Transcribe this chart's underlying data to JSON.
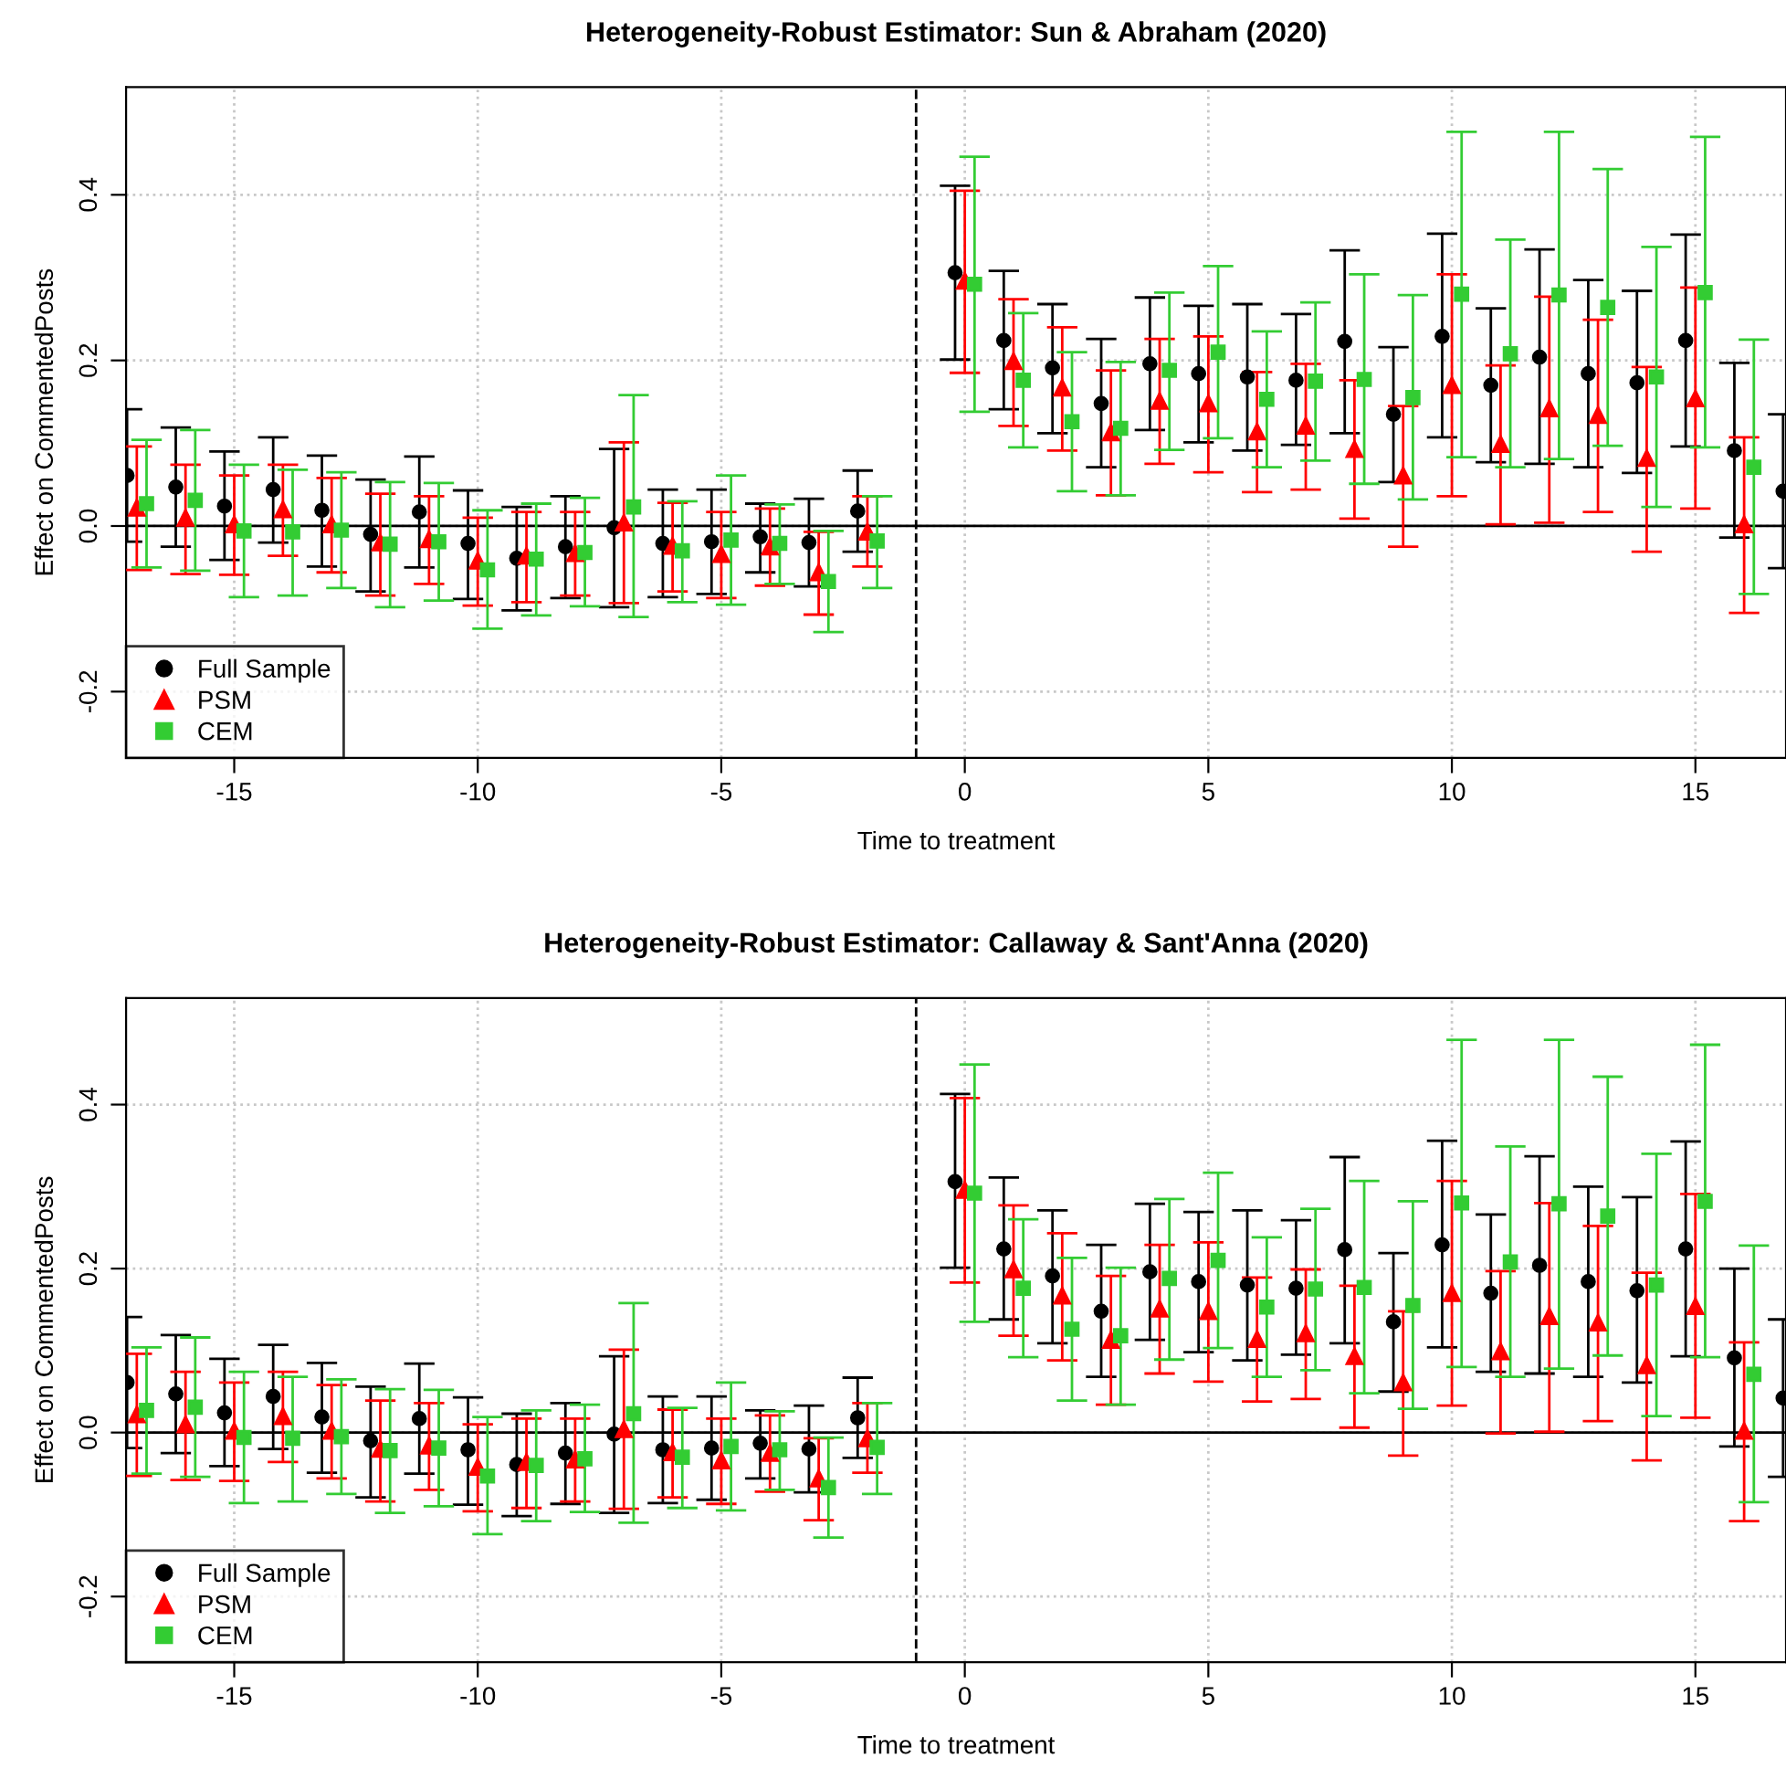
{
  "chart_data": [
    {
      "type": "scatter",
      "title": "Heterogeneity-Robust Estimator: Sun & Abraham (2020)",
      "xlabel": "Time to treatment",
      "ylabel": "Effect on CommentedPosts",
      "xlim": [
        -17.22,
        16.86
      ],
      "ylim": [
        -0.28,
        0.53
      ],
      "xticks": [
        -15,
        -10,
        -5,
        0,
        5,
        10,
        15
      ],
      "yticks": [
        -0.2,
        {
          "value": 0,
          "label": "0.0"
        },
        0.2,
        0.4
      ],
      "grid": true,
      "legend": "bottom left",
      "line_style": "none",
      "ref_lines": [
        {
          "axis": "x",
          "value": -1,
          "color": "#000000",
          "line_style": "dashed"
        },
        {
          "axis": "y",
          "value": 0,
          "color": "#000000",
          "line_style": "solid"
        }
      ],
      "series": [
        {
          "name": "Full Sample",
          "color": "#000000",
          "marker": "circle",
          "x": [
            -17.2,
            -16.2,
            -15.2,
            -14.2,
            -13.2,
            -12.2,
            -11.2,
            -10.2,
            -9.2,
            -8.2,
            -7.2,
            -6.2,
            -5.2,
            -4.2,
            -3.2,
            -2.2,
            -0.2,
            0.8,
            1.8,
            2.8,
            3.8,
            4.8,
            5.8,
            6.8,
            7.8,
            8.8,
            9.8,
            10.8,
            11.8,
            12.8,
            13.8,
            14.8,
            15.8,
            16.8
          ],
          "values": [
            0.061,
            0.047,
            0.024,
            0.044,
            0.019,
            -0.01,
            0.017,
            -0.021,
            -0.039,
            -0.025,
            -0.002,
            -0.021,
            -0.019,
            -0.013,
            -0.02,
            0.018,
            0.306,
            0.224,
            0.191,
            0.148,
            0.196,
            0.184,
            0.18,
            0.176,
            0.223,
            0.135,
            0.229,
            0.17,
            0.204,
            0.184,
            0.173,
            0.224,
            0.091,
            0.042
          ],
          "errors": [
            [
              -0.019,
              0.141
            ],
            [
              -0.025,
              0.119
            ],
            [
              -0.041,
              0.09
            ],
            [
              -0.02,
              0.107
            ],
            [
              -0.049,
              0.085
            ],
            [
              -0.079,
              0.056
            ],
            [
              -0.05,
              0.084
            ],
            [
              -0.088,
              0.043
            ],
            [
              -0.102,
              0.023
            ],
            [
              -0.087,
              0.036
            ],
            [
              -0.098,
              0.093
            ],
            [
              -0.086,
              0.044
            ],
            [
              -0.082,
              0.044
            ],
            [
              -0.056,
              0.027
            ],
            [
              -0.073,
              0.033
            ],
            [
              -0.031,
              0.067
            ],
            [
              0.201,
              0.411
            ],
            [
              0.141,
              0.308
            ],
            [
              0.112,
              0.268
            ],
            [
              0.071,
              0.226
            ],
            [
              0.116,
              0.276
            ],
            [
              0.101,
              0.266
            ],
            [
              0.091,
              0.268
            ],
            [
              0.098,
              0.256
            ],
            [
              0.112,
              0.333
            ],
            [
              0.053,
              0.216
            ],
            [
              0.107,
              0.353
            ],
            [
              0.077,
              0.263
            ],
            [
              0.075,
              0.334
            ],
            [
              0.071,
              0.297
            ],
            [
              0.064,
              0.284
            ],
            [
              0.096,
              0.352
            ],
            [
              -0.014,
              0.197
            ],
            [
              -0.051,
              0.135
            ]
          ]
        },
        {
          "name": "PSM",
          "color": "#ff0000",
          "marker": "triangle",
          "x": [
            -17,
            -16,
            -15,
            -14,
            -13,
            -12,
            -11,
            -10,
            -9,
            -8,
            -7,
            -6,
            -5,
            -4,
            -3,
            -2,
            0,
            1,
            2,
            3,
            4,
            5,
            6,
            7,
            8,
            9,
            10,
            11,
            12,
            13,
            14,
            15,
            16
          ],
          "values": [
            0.022,
            0.01,
            0.002,
            0.02,
            0.002,
            -0.02,
            -0.016,
            -0.042,
            -0.036,
            -0.033,
            0.004,
            -0.024,
            -0.034,
            -0.025,
            -0.056,
            -0.007,
            0.296,
            0.199,
            0.167,
            0.113,
            0.151,
            0.148,
            0.114,
            0.121,
            0.093,
            0.061,
            0.17,
            0.099,
            0.142,
            0.134,
            0.082,
            0.154,
            0.002
          ],
          "errors": [
            [
              -0.053,
              0.096
            ],
            [
              -0.058,
              0.074
            ],
            [
              -0.059,
              0.061
            ],
            [
              -0.036,
              0.074
            ],
            [
              -0.056,
              0.058
            ],
            [
              -0.084,
              0.039
            ],
            [
              -0.07,
              0.036
            ],
            [
              -0.096,
              0.01
            ],
            [
              -0.092,
              0.017
            ],
            [
              -0.084,
              0.017
            ],
            [
              -0.093,
              0.101
            ],
            [
              -0.079,
              0.028
            ],
            [
              -0.087,
              0.017
            ],
            [
              -0.072,
              0.021
            ],
            [
              -0.107,
              -0.007
            ],
            [
              -0.049,
              0.036
            ],
            [
              0.185,
              0.405
            ],
            [
              0.121,
              0.274
            ],
            [
              0.091,
              0.24
            ],
            [
              0.037,
              0.188
            ],
            [
              0.075,
              0.226
            ],
            [
              0.065,
              0.229
            ],
            [
              0.041,
              0.186
            ],
            [
              0.044,
              0.196
            ],
            [
              0.009,
              0.176
            ],
            [
              -0.025,
              0.145
            ],
            [
              0.036,
              0.304
            ],
            [
              0.002,
              0.194
            ],
            [
              0.004,
              0.277
            ],
            [
              0.017,
              0.249
            ],
            [
              -0.031,
              0.192
            ],
            [
              0.021,
              0.288
            ],
            [
              -0.105,
              0.107
            ]
          ]
        },
        {
          "name": "CEM",
          "color": "#33cc33",
          "marker": "square",
          "x": [
            -16.8,
            -15.8,
            -14.8,
            -13.8,
            -12.8,
            -11.8,
            -10.8,
            -9.8,
            -8.8,
            -7.8,
            -6.8,
            -5.8,
            -4.8,
            -3.8,
            -2.8,
            -1.8,
            0.2,
            1.2,
            2.2,
            3.2,
            4.2,
            5.2,
            6.2,
            7.2,
            8.2,
            9.2,
            10.2,
            11.2,
            12.2,
            13.2,
            14.2,
            15.2,
            16.2
          ],
          "values": [
            0.027,
            0.031,
            -0.006,
            -0.007,
            -0.005,
            -0.022,
            -0.019,
            -0.053,
            -0.04,
            -0.032,
            0.023,
            -0.03,
            -0.017,
            -0.021,
            -0.067,
            -0.018,
            0.292,
            0.176,
            0.126,
            0.118,
            0.188,
            0.21,
            0.153,
            0.175,
            0.177,
            0.155,
            0.28,
            0.208,
            0.279,
            0.264,
            0.18,
            0.282,
            0.071
          ],
          "errors": [
            [
              -0.05,
              0.104
            ],
            [
              -0.054,
              0.116
            ],
            [
              -0.086,
              0.074
            ],
            [
              -0.084,
              0.068
            ],
            [
              -0.075,
              0.065
            ],
            [
              -0.098,
              0.053
            ],
            [
              -0.09,
              0.052
            ],
            [
              -0.124,
              0.019
            ],
            [
              -0.108,
              0.027
            ],
            [
              -0.097,
              0.034
            ],
            [
              -0.11,
              0.158
            ],
            [
              -0.092,
              0.03
            ],
            [
              -0.095,
              0.061
            ],
            [
              -0.07,
              0.026
            ],
            [
              -0.128,
              -0.006
            ],
            [
              -0.075,
              0.036
            ],
            [
              0.138,
              0.446
            ],
            [
              0.095,
              0.257
            ],
            [
              0.042,
              0.21
            ],
            [
              0.037,
              0.198
            ],
            [
              0.092,
              0.282
            ],
            [
              0.106,
              0.314
            ],
            [
              0.071,
              0.235
            ],
            [
              0.079,
              0.27
            ],
            [
              0.051,
              0.304
            ],
            [
              0.032,
              0.279
            ],
            [
              0.083,
              0.476
            ],
            [
              0.071,
              0.346
            ],
            [
              0.081,
              0.476
            ],
            [
              0.097,
              0.431
            ],
            [
              0.023,
              0.337
            ],
            [
              0.095,
              0.47
            ],
            [
              -0.082,
              0.225
            ]
          ]
        }
      ]
    },
    {
      "type": "scatter",
      "title": "Heterogeneity-Robust Estimator: Callaway & Sant'Anna (2020)",
      "xlabel": "Time to treatment",
      "ylabel": "Effect on CommentedPosts",
      "xlim": [
        -17.22,
        16.86
      ],
      "ylim": [
        -0.28,
        0.53
      ],
      "xticks": [
        -15,
        -10,
        -5,
        0,
        5,
        10,
        15
      ],
      "yticks": [
        -0.2,
        {
          "value": 0,
          "label": "0.0"
        },
        0.2,
        0.4
      ],
      "grid": true,
      "legend": "bottom left",
      "line_style": "none",
      "ref_lines": [
        {
          "axis": "x",
          "value": -1,
          "color": "#000000",
          "line_style": "dashed"
        },
        {
          "axis": "y",
          "value": 0,
          "color": "#000000",
          "line_style": "solid"
        }
      ],
      "series": [
        {
          "name": "Full Sample",
          "color": "#000000",
          "marker": "circle",
          "x": [
            -17.2,
            -16.2,
            -15.2,
            -14.2,
            -13.2,
            -12.2,
            -11.2,
            -10.2,
            -9.2,
            -8.2,
            -7.2,
            -6.2,
            -5.2,
            -4.2,
            -3.2,
            -2.2,
            -0.2,
            0.8,
            1.8,
            2.8,
            3.8,
            4.8,
            5.8,
            6.8,
            7.8,
            8.8,
            9.8,
            10.8,
            11.8,
            12.8,
            13.8,
            14.8,
            15.8,
            16.8
          ],
          "values": [
            0.061,
            0.047,
            0.024,
            0.044,
            0.019,
            -0.01,
            0.017,
            -0.021,
            -0.039,
            -0.025,
            -0.002,
            -0.021,
            -0.019,
            -0.013,
            -0.02,
            0.018,
            0.306,
            0.224,
            0.191,
            0.148,
            0.196,
            0.184,
            0.18,
            0.176,
            0.223,
            0.135,
            0.229,
            0.17,
            0.204,
            0.184,
            0.173,
            0.224,
            0.091,
            0.042
          ],
          "errors": [
            [
              -0.019,
              0.141
            ],
            [
              -0.025,
              0.119
            ],
            [
              -0.041,
              0.09
            ],
            [
              -0.02,
              0.107
            ],
            [
              -0.049,
              0.085
            ],
            [
              -0.079,
              0.056
            ],
            [
              -0.05,
              0.084
            ],
            [
              -0.088,
              0.043
            ],
            [
              -0.102,
              0.023
            ],
            [
              -0.087,
              0.036
            ],
            [
              -0.098,
              0.093
            ],
            [
              -0.086,
              0.044
            ],
            [
              -0.082,
              0.044
            ],
            [
              -0.056,
              0.027
            ],
            [
              -0.073,
              0.033
            ],
            [
              -0.031,
              0.067
            ],
            [
              0.201,
              0.413
            ],
            [
              0.138,
              0.311
            ],
            [
              0.109,
              0.271
            ],
            [
              0.068,
              0.229
            ],
            [
              0.113,
              0.279
            ],
            [
              0.098,
              0.269
            ],
            [
              0.088,
              0.271
            ],
            [
              0.095,
              0.259
            ],
            [
              0.109,
              0.336
            ],
            [
              0.05,
              0.219
            ],
            [
              0.104,
              0.356
            ],
            [
              0.074,
              0.266
            ],
            [
              0.072,
              0.337
            ],
            [
              0.068,
              0.3
            ],
            [
              0.061,
              0.287
            ],
            [
              0.093,
              0.355
            ],
            [
              -0.017,
              0.2
            ],
            [
              -0.054,
              0.138
            ]
          ]
        },
        {
          "name": "PSM",
          "color": "#ff0000",
          "marker": "triangle",
          "x": [
            -17,
            -16,
            -15,
            -14,
            -13,
            -12,
            -11,
            -10,
            -9,
            -8,
            -7,
            -6,
            -5,
            -4,
            -3,
            -2,
            0,
            1,
            2,
            3,
            4,
            5,
            6,
            7,
            8,
            9,
            10,
            11,
            12,
            13,
            14,
            15,
            16
          ],
          "values": [
            0.022,
            0.01,
            0.002,
            0.02,
            0.002,
            -0.02,
            -0.016,
            -0.042,
            -0.036,
            -0.033,
            0.004,
            -0.024,
            -0.034,
            -0.025,
            -0.056,
            -0.007,
            0.296,
            0.199,
            0.167,
            0.113,
            0.151,
            0.148,
            0.114,
            0.121,
            0.093,
            0.061,
            0.17,
            0.099,
            0.142,
            0.134,
            0.082,
            0.154,
            0.002
          ],
          "errors": [
            [
              -0.053,
              0.096
            ],
            [
              -0.058,
              0.074
            ],
            [
              -0.059,
              0.061
            ],
            [
              -0.036,
              0.074
            ],
            [
              -0.056,
              0.058
            ],
            [
              -0.084,
              0.039
            ],
            [
              -0.07,
              0.036
            ],
            [
              -0.096,
              0.01
            ],
            [
              -0.092,
              0.017
            ],
            [
              -0.084,
              0.017
            ],
            [
              -0.093,
              0.101
            ],
            [
              -0.079,
              0.028
            ],
            [
              -0.087,
              0.017
            ],
            [
              -0.072,
              0.021
            ],
            [
              -0.107,
              -0.007
            ],
            [
              -0.049,
              0.036
            ],
            [
              0.183,
              0.408
            ],
            [
              0.118,
              0.277
            ],
            [
              0.088,
              0.243
            ],
            [
              0.034,
              0.191
            ],
            [
              0.072,
              0.229
            ],
            [
              0.062,
              0.232
            ],
            [
              0.038,
              0.189
            ],
            [
              0.041,
              0.199
            ],
            [
              0.006,
              0.179
            ],
            [
              -0.028,
              0.148
            ],
            [
              0.033,
              0.307
            ],
            [
              -0.001,
              0.197
            ],
            [
              0.001,
              0.28
            ],
            [
              0.014,
              0.252
            ],
            [
              -0.034,
              0.195
            ],
            [
              0.018,
              0.291
            ],
            [
              -0.108,
              0.11
            ]
          ]
        },
        {
          "name": "CEM",
          "color": "#33cc33",
          "marker": "square",
          "x": [
            -16.8,
            -15.8,
            -14.8,
            -13.8,
            -12.8,
            -11.8,
            -10.8,
            -9.8,
            -8.8,
            -7.8,
            -6.8,
            -5.8,
            -4.8,
            -3.8,
            -2.8,
            -1.8,
            0.2,
            1.2,
            2.2,
            3.2,
            4.2,
            5.2,
            6.2,
            7.2,
            8.2,
            9.2,
            10.2,
            11.2,
            12.2,
            13.2,
            14.2,
            15.2,
            16.2
          ],
          "values": [
            0.027,
            0.031,
            -0.006,
            -0.007,
            -0.005,
            -0.022,
            -0.019,
            -0.053,
            -0.04,
            -0.032,
            0.023,
            -0.03,
            -0.017,
            -0.021,
            -0.067,
            -0.018,
            0.292,
            0.176,
            0.126,
            0.118,
            0.188,
            0.21,
            0.153,
            0.175,
            0.177,
            0.155,
            0.28,
            0.208,
            0.279,
            0.264,
            0.18,
            0.282,
            0.071
          ],
          "errors": [
            [
              -0.05,
              0.104
            ],
            [
              -0.054,
              0.116
            ],
            [
              -0.086,
              0.074
            ],
            [
              -0.084,
              0.068
            ],
            [
              -0.075,
              0.065
            ],
            [
              -0.098,
              0.053
            ],
            [
              -0.09,
              0.052
            ],
            [
              -0.124,
              0.019
            ],
            [
              -0.108,
              0.027
            ],
            [
              -0.097,
              0.034
            ],
            [
              -0.11,
              0.158
            ],
            [
              -0.092,
              0.03
            ],
            [
              -0.095,
              0.061
            ],
            [
              -0.07,
              0.026
            ],
            [
              -0.128,
              -0.006
            ],
            [
              -0.075,
              0.036
            ],
            [
              0.135,
              0.449
            ],
            [
              0.092,
              0.26
            ],
            [
              0.039,
              0.213
            ],
            [
              0.034,
              0.201
            ],
            [
              0.089,
              0.285
            ],
            [
              0.103,
              0.317
            ],
            [
              0.068,
              0.238
            ],
            [
              0.076,
              0.273
            ],
            [
              0.048,
              0.307
            ],
            [
              0.029,
              0.282
            ],
            [
              0.08,
              0.479
            ],
            [
              0.068,
              0.349
            ],
            [
              0.078,
              0.479
            ],
            [
              0.094,
              0.434
            ],
            [
              0.02,
              0.34
            ],
            [
              0.092,
              0.473
            ],
            [
              -0.085,
              0.228
            ]
          ]
        }
      ]
    }
  ]
}
